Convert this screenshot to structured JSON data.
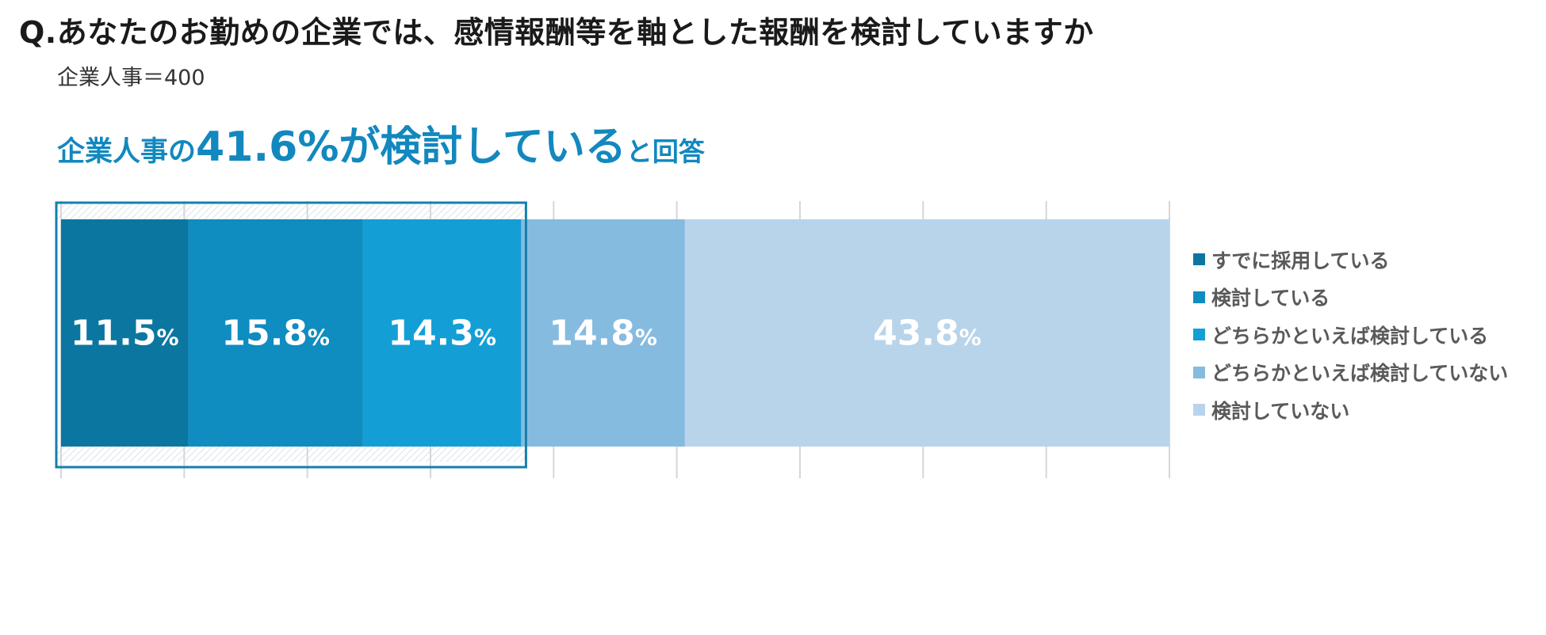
{
  "header": {
    "question": "Q.あなたのお勤めの企業では、感情報酬等を軸とした報酬を検討していますか",
    "sample": "企業人事＝400"
  },
  "headline": {
    "prefix": "企業人事の",
    "highlight": "41.6%が検討している",
    "suffix": "と回答"
  },
  "chart_data": {
    "type": "bar",
    "orientation": "horizontal",
    "stacked": true,
    "categories": [
      "企業人事"
    ],
    "unit": "%",
    "xlim": [
      0,
      100
    ],
    "grid": true,
    "legend_position": "right",
    "highlight_box_segments": [
      "すでに採用している",
      "検討している",
      "どちらかといえば検討している"
    ],
    "series": [
      {
        "name": "すでに採用している",
        "values": [
          11.5
        ],
        "color": "#0b77a1"
      },
      {
        "name": "検討している",
        "values": [
          15.8
        ],
        "color": "#0f8cc0"
      },
      {
        "name": "どちらかといえば検討している",
        "values": [
          14.3
        ],
        "color": "#139fd6"
      },
      {
        "name": "どちらかといえば検討していない",
        "values": [
          14.8
        ],
        "color": "#86bbe0"
      },
      {
        "name": "検討していない",
        "values": [
          43.8
        ],
        "color": "#b8d4eb"
      }
    ]
  }
}
